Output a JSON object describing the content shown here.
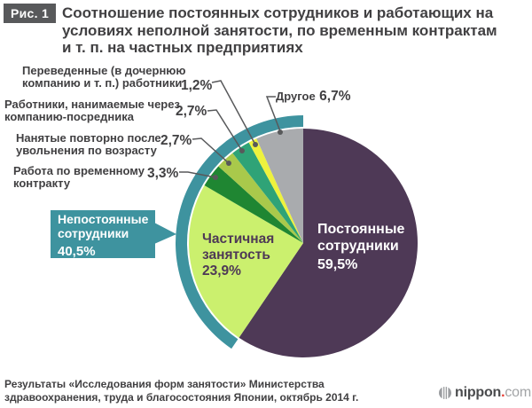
{
  "figure": {
    "tag": "Рис. 1",
    "title_lines": [
      "Соотношение постоянных сотрудников и работающих на",
      "условиях неполной занятости, по временным контрактам",
      "и т. п. на частных предприятиях"
    ]
  },
  "chart_data": {
    "type": "pie",
    "unit": "%",
    "start_angle_deg": 0,
    "direction": "clockwise",
    "slices": [
      {
        "label": "Постоянные сотрудники",
        "value": 59.5,
        "display": "59,5%",
        "color": "#4e3956"
      },
      {
        "label": "Частичная занятость",
        "value": 23.9,
        "display": "23,9%",
        "color": "#cbf06e"
      },
      {
        "label": "Работа по временному контракту",
        "value": 3.3,
        "display": "3,3%",
        "color": "#1f8632"
      },
      {
        "label": "Нанятые повторно после увольнения по возрасту",
        "value": 2.7,
        "display": "2,7%",
        "color": "#a9c94b"
      },
      {
        "label": "Работники, нанимаемые через компанию-посредника",
        "value": 2.7,
        "display": "2,7%",
        "color": "#2fa377"
      },
      {
        "label": "Переведенные (в дочернюю компанию и т. п.) работники",
        "value": 1.2,
        "display": "1,2%",
        "color": "#eef23d"
      },
      {
        "label": "Другое",
        "value": 6.7,
        "display": "6,7%",
        "color": "#a9abae"
      }
    ],
    "group_ring": {
      "label": "Непостоянные сотрудники",
      "value": 40.5,
      "display": "40,5%",
      "color": "#3e939f",
      "covers": [
        "Частичная занятость",
        "Работа по временному контракту",
        "Нанятые повторно после увольнения по возрасту",
        "Работники, нанимаемые через компанию-посредника",
        "Переведенные (в дочернюю компанию и т. п.) работники",
        "Другое"
      ]
    }
  },
  "labels": {
    "transferred": {
      "lines": [
        "Переведенные (в дочернюю",
        "компанию и т. п.) работники"
      ],
      "pct": "1,2%"
    },
    "agency": {
      "lines": [
        "Работники, нанимаемые через",
        "компанию-посредника"
      ],
      "pct": "2,7%"
    },
    "rehired": {
      "lines": [
        "Нанятые повторно после",
        "увольнения по возрасту"
      ],
      "pct": "2,7%"
    },
    "temp_contract": {
      "lines": [
        "Работа по временному",
        "контракту"
      ],
      "pct": "3,3%"
    },
    "other": {
      "word": "Другое",
      "pct": "6,7%"
    }
  },
  "footer": {
    "source_lines": [
      "Результаты «Исследования форм занятости» Министерства",
      "здравоохранения, труда и благосостояния Японии, октябрь 2014 г."
    ],
    "logo": {
      "name": "nippon",
      "dot": ".",
      "tld": "com"
    }
  }
}
